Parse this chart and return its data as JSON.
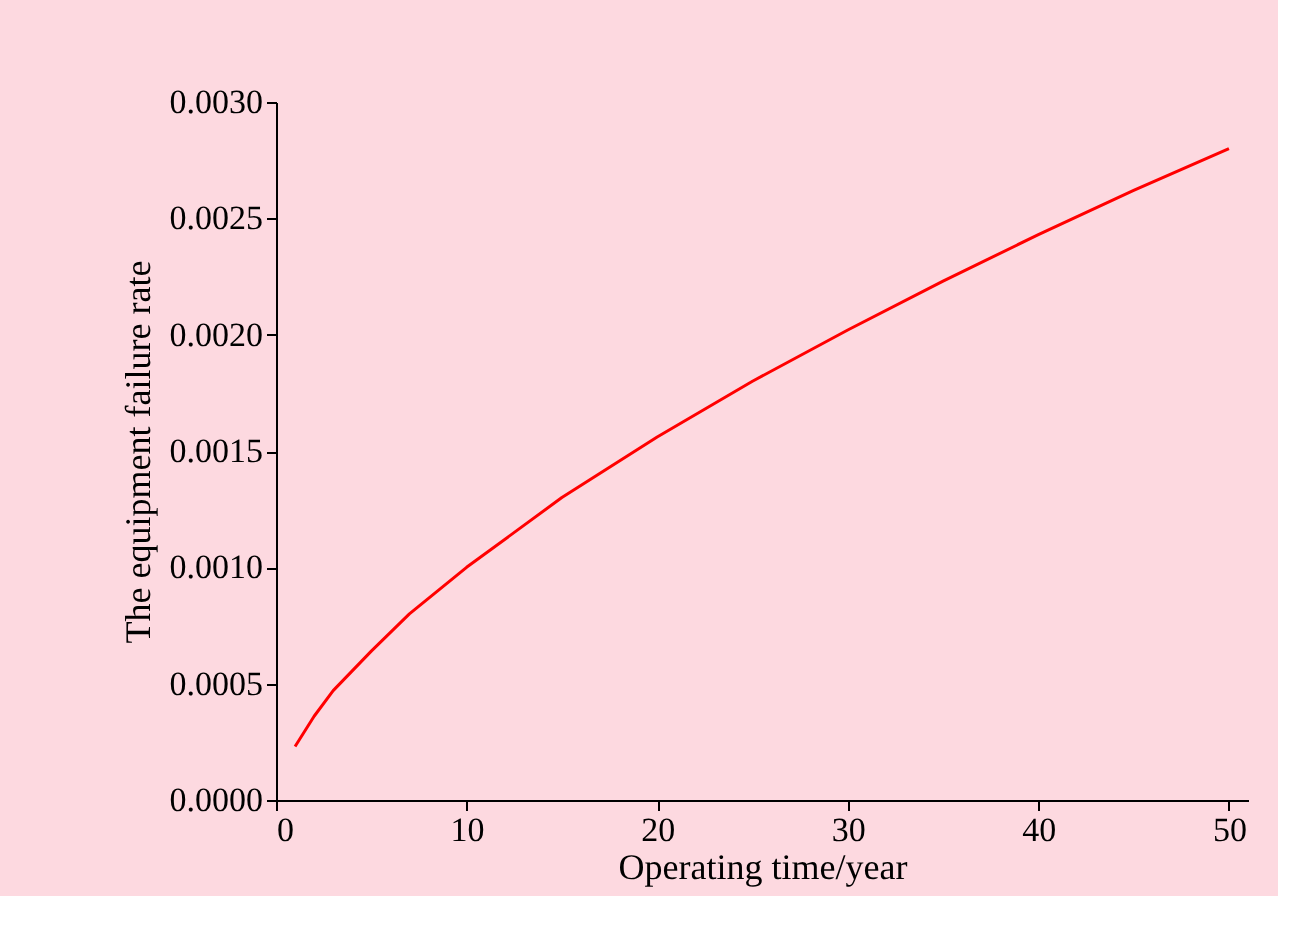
{
  "chart_data": {
    "type": "line",
    "xlabel": "Operating time/year",
    "ylabel": "The equipment failure rate",
    "x": [
      1,
      2,
      3,
      5,
      7,
      10,
      15,
      20,
      25,
      30,
      35,
      40,
      45,
      50
    ],
    "series": [
      {
        "color": "#ff0000",
        "values": [
          0.00023,
          0.00036,
          0.00047,
          0.00064,
          0.0008,
          0.001,
          0.0013,
          0.00156,
          0.0018,
          0.00202,
          0.00223,
          0.00243,
          0.00262,
          0.0028
        ]
      }
    ],
    "xlim": [
      0,
      51
    ],
    "xticks": [
      0,
      10,
      20,
      30,
      40,
      50
    ],
    "ylim": [
      0,
      0.003
    ],
    "yticks": [
      {
        "value": 0,
        "label": "0.0000"
      },
      {
        "value": 0.0005,
        "label": "0.0005"
      },
      {
        "value": 0.001,
        "label": "0.0010"
      },
      {
        "value": 0.0015,
        "label": "0.0015"
      },
      {
        "value": 0.002,
        "label": "0.0020"
      },
      {
        "value": 0.0025,
        "label": "0.0025"
      },
      {
        "value": 0.003,
        "label": "0.0030"
      }
    ],
    "grid": false,
    "marker": "none",
    "line_style": "solid"
  }
}
